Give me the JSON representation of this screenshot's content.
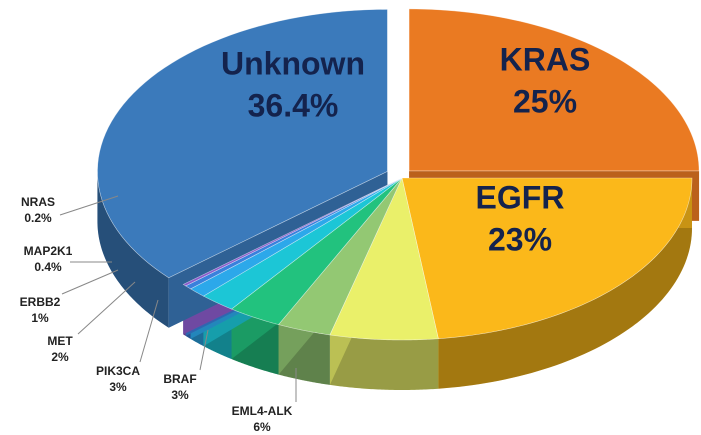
{
  "chart_data": {
    "type": "pie",
    "categories": [
      "KRAS",
      "EGFR",
      "EML4-ALK",
      "BRAF",
      "PIK3CA",
      "MET",
      "ERBB2",
      "MAP2K1",
      "NRAS",
      "Unknown"
    ],
    "values": [
      25,
      23,
      6,
      3,
      3,
      2,
      1,
      0.4,
      0.2,
      36.4
    ],
    "value_labels": [
      "25%",
      "23%",
      "6%",
      "3%",
      "3%",
      "2%",
      "1%",
      "0.4%",
      "0.2%",
      "36.4%"
    ],
    "colors": [
      "#ea7a22",
      "#fbb81a",
      "#eaf06a",
      "#93c873",
      "#22c27e",
      "#1cc6d6",
      "#2ca8ea",
      "#3a80dc",
      "#8b5ccb",
      "#3b7abb"
    ]
  }
}
